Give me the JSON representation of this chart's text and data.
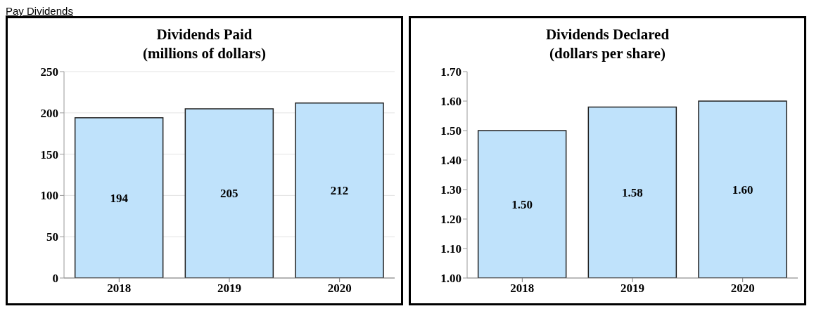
{
  "chart_data": [
    {
      "type": "bar",
      "title": "Dividends Paid\n(millions of dollars)",
      "annotations": [
        "Pay Dividends"
      ],
      "categories": [
        "2018",
        "2019",
        "2020"
      ],
      "values": [
        194,
        205,
        212
      ],
      "color": "#bfe2fb",
      "ylim": [
        0,
        250
      ],
      "yticks": [
        0,
        50,
        100,
        150,
        200,
        250
      ],
      "grid": "y",
      "data_labels": true
    },
    {
      "type": "bar",
      "title": "Dividends Declared\n(dollars per share)",
      "categories": [
        "2018",
        "2019",
        "2020"
      ],
      "values": [
        1.5,
        1.58,
        1.6
      ],
      "value_labels": [
        "1.50",
        "1.58",
        "1.60"
      ],
      "color": "#bfe2fb",
      "ylim": [
        1.0,
        1.7
      ],
      "yticks": [
        {
          "value": 1.0,
          "label": "1.00"
        },
        {
          "value": 1.1,
          "label": "1.10"
        },
        {
          "value": 1.2,
          "label": "1.20"
        },
        {
          "value": 1.3,
          "label": "1.30"
        },
        {
          "value": 1.4,
          "label": "1.40"
        },
        {
          "value": 1.5,
          "label": "1.50"
        },
        {
          "value": 1.6,
          "label": "1.60"
        },
        {
          "value": 1.7,
          "label": "1.70"
        }
      ]
    }
  ]
}
